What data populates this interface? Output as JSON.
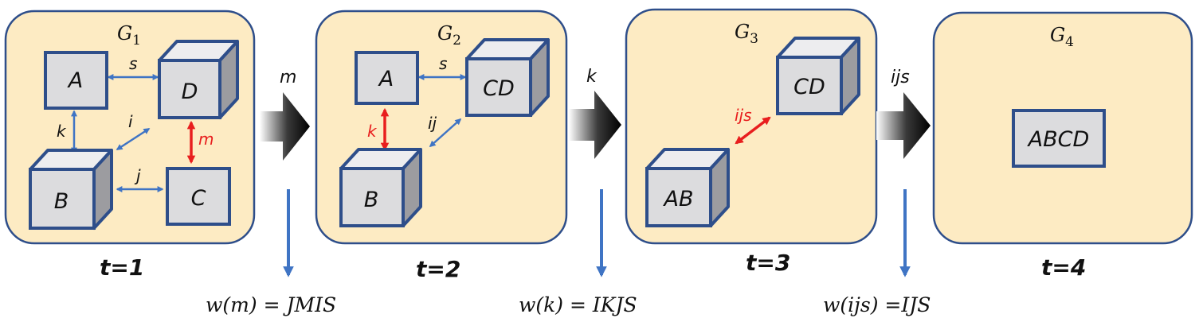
{
  "panels": [
    {
      "graph": "G",
      "sub": "1",
      "time": "t=1"
    },
    {
      "graph": "G",
      "sub": "2",
      "time": "t=2"
    },
    {
      "graph": "G",
      "sub": "3",
      "time": "t=3"
    },
    {
      "graph": "G",
      "sub": "4",
      "time": "t=4"
    }
  ],
  "nodes": {
    "p1": {
      "A": "A",
      "D": "D",
      "B": "B",
      "C": "C"
    },
    "p2": {
      "A": "A",
      "CD": "CD",
      "B": "B"
    },
    "p3": {
      "CD": "CD",
      "AB": "AB"
    },
    "p4": {
      "ABCD": "ABCD"
    }
  },
  "edges": {
    "p1": {
      "s": "s",
      "i": "i",
      "k": "k",
      "m": "m",
      "j": "j"
    },
    "p2": {
      "s": "s",
      "ij": "ij",
      "k": "k"
    },
    "p3": {
      "ijs": "ijs"
    }
  },
  "operations": [
    "m",
    "k",
    "ijs"
  ],
  "formulas": [
    {
      "lhs": "w(m)",
      "eq": " = ",
      "rhs": "JMIS"
    },
    {
      "lhs": "w(k)",
      "eq": " = ",
      "rhs": "IKJS"
    },
    {
      "lhs": "w(ijs)",
      "eq": " =",
      "rhs": "IJS"
    }
  ],
  "colors": {
    "panel_fill": "#FDEBC3",
    "panel_border": "#2E4E8A",
    "box_fill": "#DCDCDE",
    "box_side": "#9C9CA0",
    "edge_blue": "#3F74C4",
    "edge_red": "#E81E1E"
  }
}
